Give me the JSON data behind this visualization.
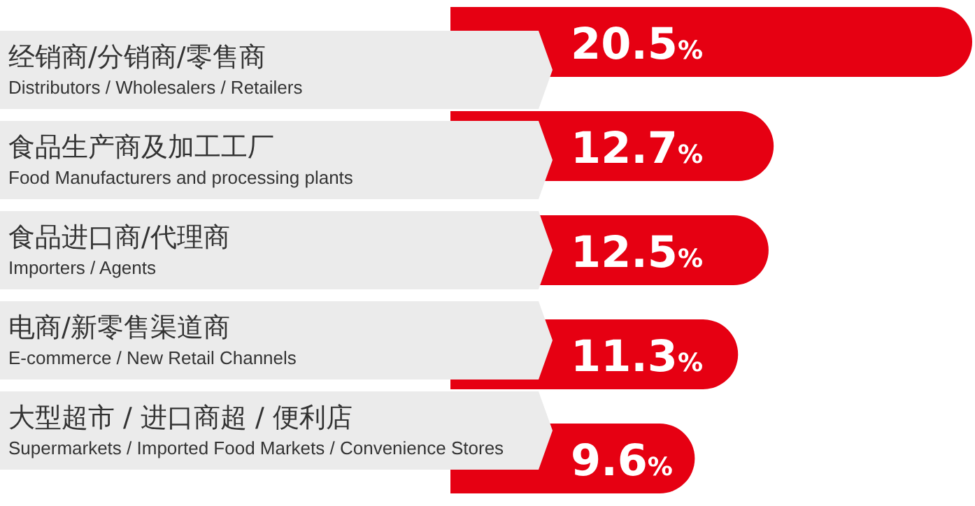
{
  "chart_data": {
    "type": "bar",
    "orientation": "horizontal",
    "categories": [
      "经销商/分销商/零售商\nDistributors / Wholesalers / Retailers",
      "食品生产商及加工工厂\nFood Manufacturers and processing plants",
      "食品进口商/代理商\nImporters / Agents",
      "电商/新零售渠道商\nE-commerce / New Retail Channels",
      "大型超市 / 进口商超 / 便利店\nSupermarkets / Imported Food Markets / Convenience Stores"
    ],
    "values": [
      20.5,
      12.7,
      12.5,
      11.3,
      9.6
    ],
    "value_labels": [
      "20.5%",
      "12.7%",
      "12.5%",
      "11.3%",
      "9.6%"
    ],
    "color": "#e60012"
  }
}
